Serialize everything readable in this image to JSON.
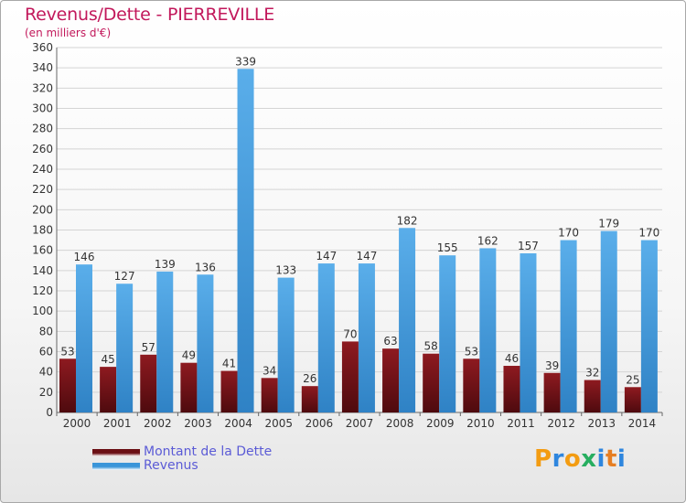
{
  "header": {
    "title": "Revenus/Dette - PIERREVILLE",
    "subtitle": "(en milliers d'€)"
  },
  "colors": {
    "title": "#c2185b",
    "dette": "#6b0f14",
    "revenus": "#3a95d9",
    "legend_text": "#5b5bd6"
  },
  "legend": [
    {
      "label": "Montant de la Dette",
      "color": "#6b0f14"
    },
    {
      "label": "Revenus",
      "color": "#3a95d9"
    }
  ],
  "logo": {
    "text": "Proxiti",
    "letters": [
      {
        "ch": "P",
        "color": "#f39c12"
      },
      {
        "ch": "r",
        "color": "#2e86de"
      },
      {
        "ch": "o",
        "color": "#f39c12"
      },
      {
        "ch": "x",
        "color": "#27ae60"
      },
      {
        "ch": "i",
        "color": "#2e86de"
      },
      {
        "ch": "t",
        "color": "#e67e22"
      },
      {
        "ch": "i",
        "color": "#2e86de"
      }
    ]
  },
  "chart_data": {
    "type": "bar",
    "title": "Revenus/Dette - PIERREVILLE",
    "subtitle": "(en milliers d'€)",
    "xlabel": "",
    "ylabel": "",
    "ylim": [
      0,
      360
    ],
    "yticks": [
      0,
      20,
      40,
      60,
      80,
      100,
      120,
      140,
      160,
      180,
      200,
      220,
      240,
      260,
      280,
      300,
      320,
      340,
      360
    ],
    "grid": true,
    "legend_position": "bottom-left",
    "categories": [
      "2000",
      "2001",
      "2002",
      "2003",
      "2004",
      "2005",
      "2006",
      "2007",
      "2008",
      "2009",
      "2010",
      "2011",
      "2012",
      "2013",
      "2014"
    ],
    "series": [
      {
        "name": "Montant de la Dette",
        "color": "#6b0f14",
        "values": [
          53,
          45,
          57,
          49,
          41,
          34,
          26,
          70,
          63,
          58,
          53,
          46,
          39,
          32,
          25
        ]
      },
      {
        "name": "Revenus",
        "color": "#3a95d9",
        "values": [
          146,
          127,
          139,
          136,
          339,
          133,
          147,
          147,
          182,
          155,
          162,
          157,
          170,
          179,
          170
        ]
      }
    ]
  }
}
